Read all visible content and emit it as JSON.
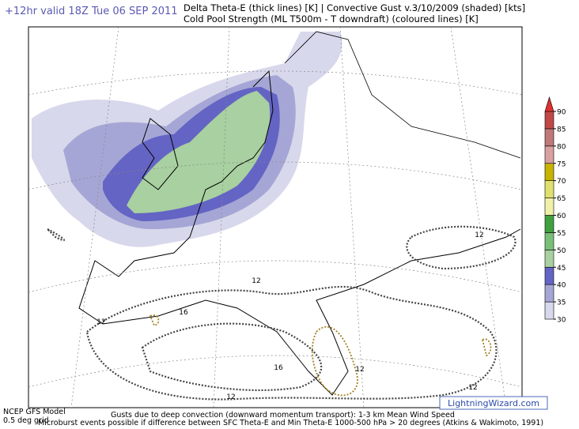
{
  "header": {
    "valid": "+12hr valid 18Z Tue 06 SEP 2011",
    "line1": "Delta Theta-E (thick lines) [K]  |  Convective Gust v.3/10/2009 (shaded) [kts]",
    "line2": "Cold Pool Strength (ML T500m - T downdraft) (coloured lines) [K]"
  },
  "colorbar": {
    "levels": [
      30,
      35,
      40,
      45,
      50,
      55,
      60,
      65,
      70,
      75,
      80,
      85,
      90
    ],
    "colors": [
      "#d8d8ec",
      "#a6a6d6",
      "#6464c4",
      "#a8d0a0",
      "#78c078",
      "#40a040",
      "#f0f0a8",
      "#e0e070",
      "#c8b400",
      "#d8a0a0",
      "#c07878",
      "#c04848"
    ],
    "extend_color": "#e03030"
  },
  "contour_labels": [
    "12",
    "12",
    "12",
    "16",
    "16",
    "12",
    "12",
    "12"
  ],
  "footer": {
    "model": "NCEP GFS Model",
    "grid": "0.5 deg grid",
    "line1": "Gusts due to deep convection (downward momentum transport): 1-3 km Mean Wind Speed",
    "line2": "Microburst events possible if difference between SFC Theta-E and Min Theta-E 1000-500 hPa > 20 degrees (Atkins & Wakimoto, 1991)"
  },
  "logo": "LightningWizard.com"
}
